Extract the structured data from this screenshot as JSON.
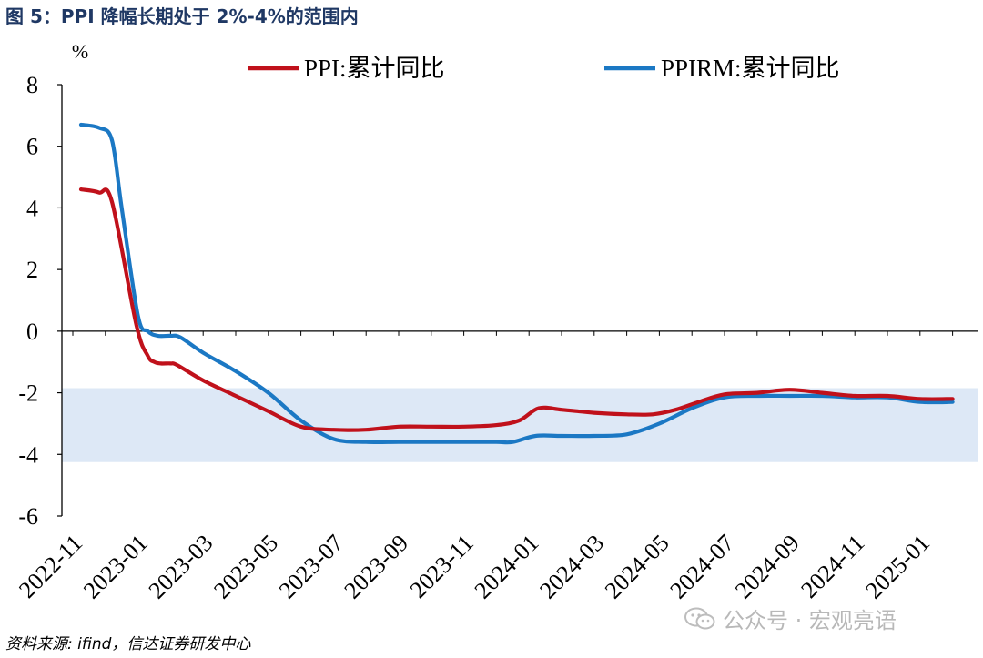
{
  "title": "图  5：PPI 降幅长期处于 2%-4%的范围内",
  "source": "资料来源: ifind，信达证券研发中心",
  "watermark": "公众号 · 宏观亮语",
  "colors": {
    "ppi": "#c0111b",
    "ppirm": "#1b78c4",
    "band": "#dde8f6",
    "axis": "#000000"
  },
  "chart_data": {
    "type": "line",
    "ylabel": "%",
    "ylim": [
      -6,
      8
    ],
    "yticks": [
      8,
      6,
      4,
      2,
      0,
      -2,
      -4,
      -6
    ],
    "xlim": [
      0,
      28
    ],
    "xticks": [
      {
        "label": "2022-11",
        "x": 0
      },
      {
        "label": "2023-01",
        "x": 2
      },
      {
        "label": "2023-03",
        "x": 4
      },
      {
        "label": "2023-05",
        "x": 6
      },
      {
        "label": "2023-07",
        "x": 8
      },
      {
        "label": "2023-09",
        "x": 10
      },
      {
        "label": "2023-11",
        "x": 12
      },
      {
        "label": "2024-01",
        "x": 14
      },
      {
        "label": "2024-03",
        "x": 16
      },
      {
        "label": "2024-05",
        "x": 18
      },
      {
        "label": "2024-07",
        "x": 20
      },
      {
        "label": "2024-09",
        "x": 22
      },
      {
        "label": "2024-11",
        "x": 24
      },
      {
        "label": "2025-01",
        "x": 26
      }
    ],
    "band": {
      "from": -4.25,
      "to": -1.85
    },
    "legend_position": "top",
    "series": [
      {
        "name": "PPI:累计同比",
        "key": "ppi",
        "x": [
          0.25,
          0.8,
          1.2,
          1.95,
          2.3,
          2.5,
          2.7,
          3.0,
          3.2,
          4.0,
          5.0,
          6.0,
          7.0,
          8.0,
          9.0,
          10.0,
          11.0,
          12.0,
          13.0,
          13.7,
          14.3,
          15.0,
          16.0,
          17.0,
          17.8,
          18.5,
          19.2,
          20.0,
          21.0,
          22.0,
          23.0,
          24.0,
          25.0,
          26.0,
          27.0
        ],
        "values": [
          4.6,
          4.5,
          4.2,
          0.2,
          -0.8,
          -1.0,
          -1.05,
          -1.05,
          -1.1,
          -1.6,
          -2.1,
          -2.6,
          -3.1,
          -3.2,
          -3.2,
          -3.1,
          -3.1,
          -3.1,
          -3.05,
          -2.9,
          -2.5,
          -2.55,
          -2.65,
          -2.7,
          -2.7,
          -2.55,
          -2.3,
          -2.05,
          -2.0,
          -1.9,
          -2.0,
          -2.1,
          -2.1,
          -2.2,
          -2.2
        ]
      },
      {
        "name": "PPIRM:累计同比",
        "key": "ppirm",
        "x": [
          0.25,
          0.8,
          1.2,
          1.5,
          2.0,
          2.3,
          2.6,
          3.0,
          3.3,
          4.0,
          5.0,
          6.0,
          7.0,
          8.0,
          9.0,
          10.0,
          11.0,
          12.0,
          13.0,
          13.5,
          14.2,
          15.0,
          16.0,
          17.0,
          18.0,
          19.0,
          20.0,
          21.0,
          22.0,
          23.0,
          24.0,
          25.0,
          26.0,
          27.0
        ],
        "values": [
          6.7,
          6.6,
          6.2,
          4.0,
          0.5,
          0.0,
          -0.15,
          -0.15,
          -0.2,
          -0.7,
          -1.3,
          -2.0,
          -2.9,
          -3.5,
          -3.6,
          -3.6,
          -3.6,
          -3.6,
          -3.6,
          -3.6,
          -3.4,
          -3.4,
          -3.4,
          -3.35,
          -3.0,
          -2.5,
          -2.15,
          -2.1,
          -2.1,
          -2.1,
          -2.15,
          -2.15,
          -2.3,
          -2.3
        ]
      }
    ]
  }
}
